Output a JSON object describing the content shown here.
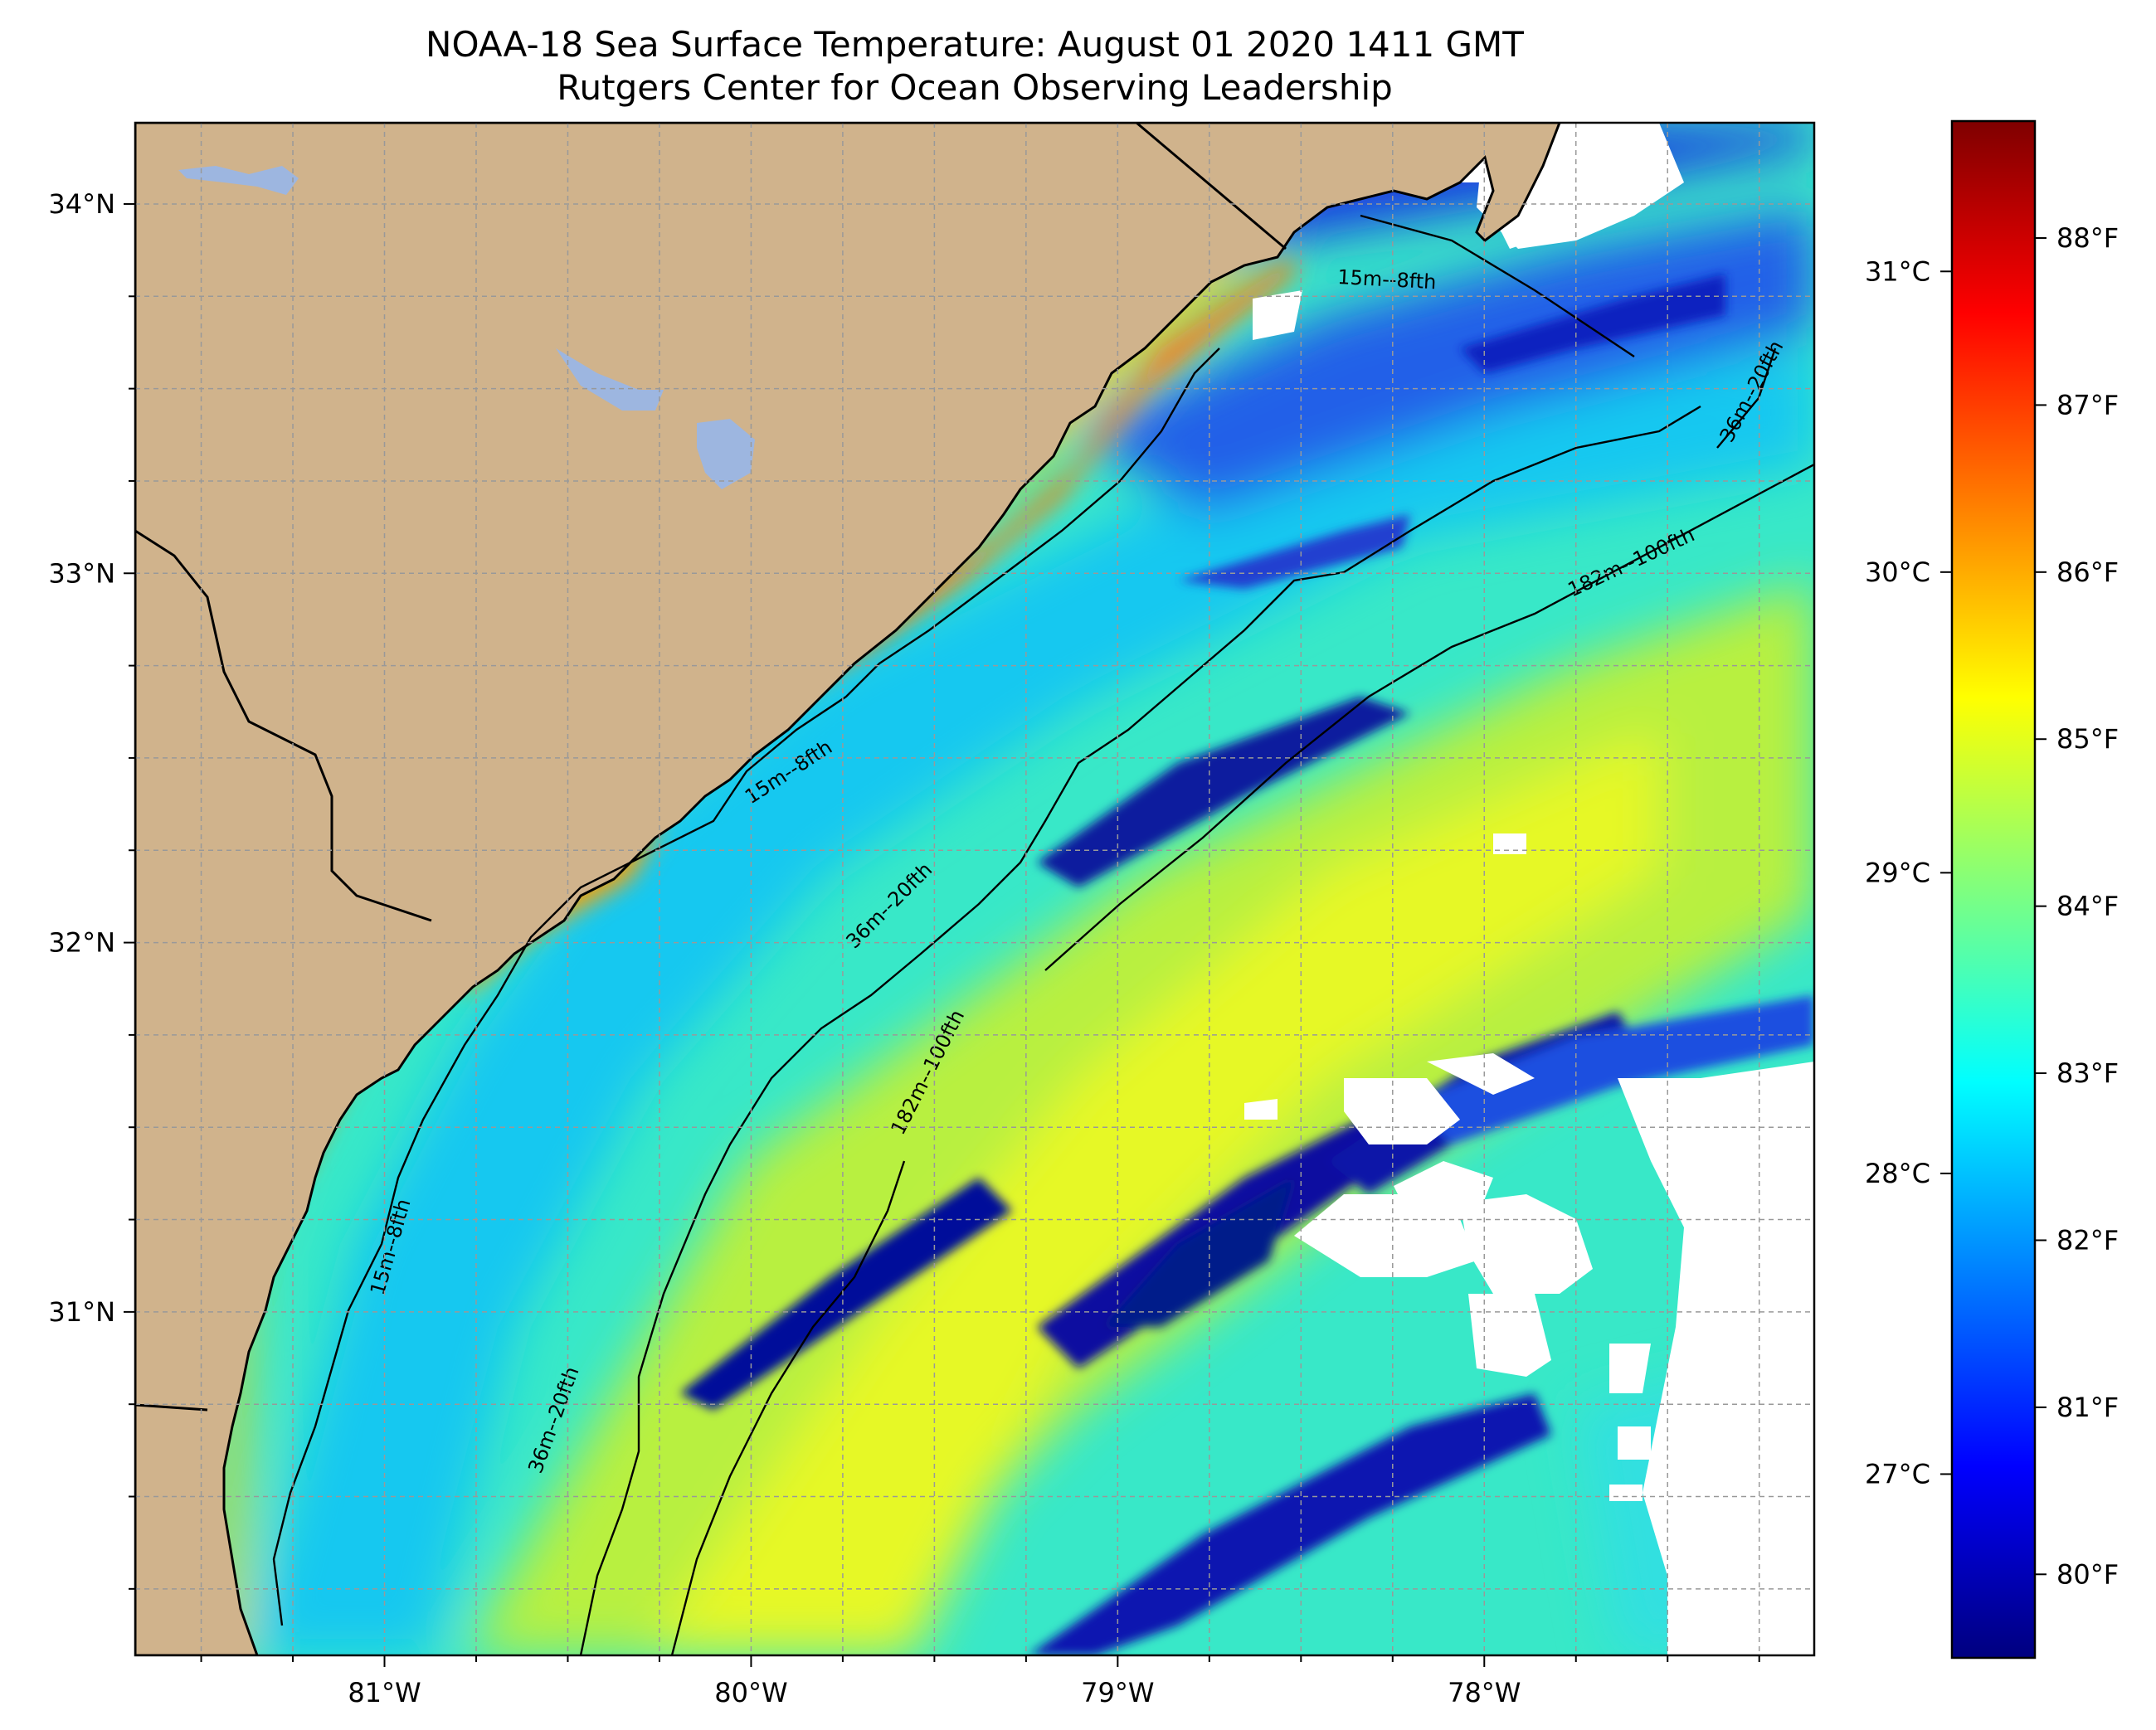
{
  "title": "NOAA-18 Sea Surface Temperature: August 01 2020 1411 GMT",
  "subtitle": "Rutgers Center for Ocean Observing Leadership",
  "map": {
    "lat_ticks": [
      {
        "value": 34,
        "label": "34°N"
      },
      {
        "value": 33,
        "label": "33°N"
      },
      {
        "value": 32,
        "label": "32°N"
      },
      {
        "value": 31,
        "label": "31°N"
      }
    ],
    "lon_ticks": [
      {
        "value": -81,
        "label": "81°W"
      },
      {
        "value": -80,
        "label": "80°W"
      },
      {
        "value": -79,
        "label": "79°W"
      },
      {
        "value": -78,
        "label": "78°W"
      }
    ],
    "lon_range": [
      -81.68,
      -77.1
    ],
    "lat_range": [
      30.07,
      34.22
    ],
    "land_color": "#d0b38c",
    "lake_color": "#9db6e0",
    "cloud_color": "#ffffff",
    "contours": [
      {
        "label": "15m--8fth",
        "angle": -3
      },
      {
        "label": "15m--8fth",
        "angle": -33
      },
      {
        "label": "15m--8fth",
        "angle": -74
      },
      {
        "label": "36m--20fth",
        "angle": -62
      },
      {
        "label": "36m--20fth",
        "angle": -45
      },
      {
        "label": "36m--20fth",
        "angle": -70
      },
      {
        "label": "182m--100fth",
        "angle": -25
      },
      {
        "label": "182m--100fth",
        "angle": -63
      }
    ]
  },
  "colorbar": {
    "fahrenheit_ticks": [
      {
        "value": 88,
        "label": "88°F"
      },
      {
        "value": 87,
        "label": "87°F"
      },
      {
        "value": 86,
        "label": "86°F"
      },
      {
        "value": 85,
        "label": "85°F"
      },
      {
        "value": 84,
        "label": "84°F"
      },
      {
        "value": 83,
        "label": "83°F"
      },
      {
        "value": 82,
        "label": "82°F"
      },
      {
        "value": 81,
        "label": "81°F"
      },
      {
        "value": 80,
        "label": "80°F"
      }
    ],
    "celsius_ticks": [
      {
        "value": 31,
        "label": "31°C"
      },
      {
        "value": 30,
        "label": "30°C"
      },
      {
        "value": 29,
        "label": "29°C"
      },
      {
        "value": 28,
        "label": "28°C"
      },
      {
        "value": 27,
        "label": "27°C"
      }
    ],
    "range_f": [
      79.5,
      88.7
    ],
    "colormap": [
      "#00007f",
      "#0000ff",
      "#007fff",
      "#00ffff",
      "#7fff7f",
      "#ffff00",
      "#ff7f00",
      "#ff0000",
      "#7f0000"
    ]
  }
}
